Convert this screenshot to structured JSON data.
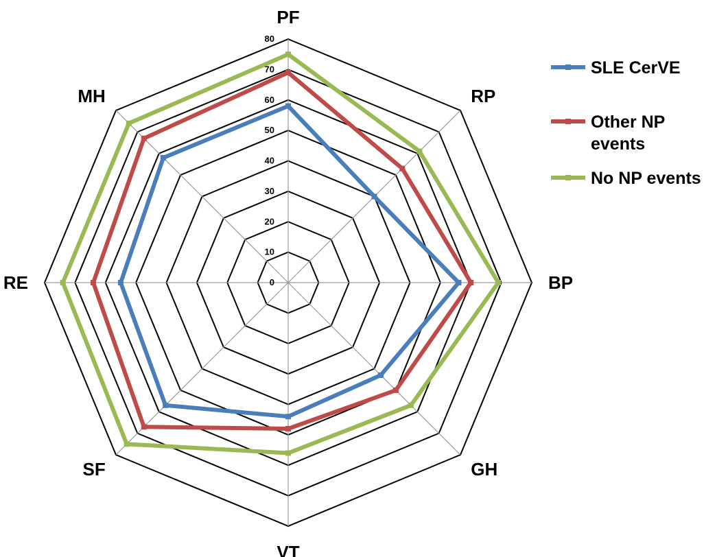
{
  "chart_data": {
    "type": "radar",
    "categories": [
      "PF",
      "RP",
      "BP",
      "GH",
      "VT",
      "SF",
      "RE",
      "MH"
    ],
    "rlim": [
      0,
      80
    ],
    "ticks": [
      "0",
      "10",
      "20",
      "30",
      "40",
      "50",
      "60",
      "70",
      "80"
    ],
    "grid": true,
    "legend_position": "top-right",
    "series": [
      {
        "name": "SLE CerVE",
        "color": "#4a7ebb",
        "values": [
          58,
          40,
          56,
          43,
          44,
          57,
          55,
          58
        ]
      },
      {
        "name": "Other NP\nevents",
        "color": "#be4b48",
        "values": [
          69,
          53,
          60,
          50,
          48,
          67,
          64,
          67
        ]
      },
      {
        "name": "No NP events",
        "color": "#98b954",
        "values": [
          75,
          61,
          69,
          57,
          56,
          75,
          74,
          74
        ]
      }
    ]
  }
}
